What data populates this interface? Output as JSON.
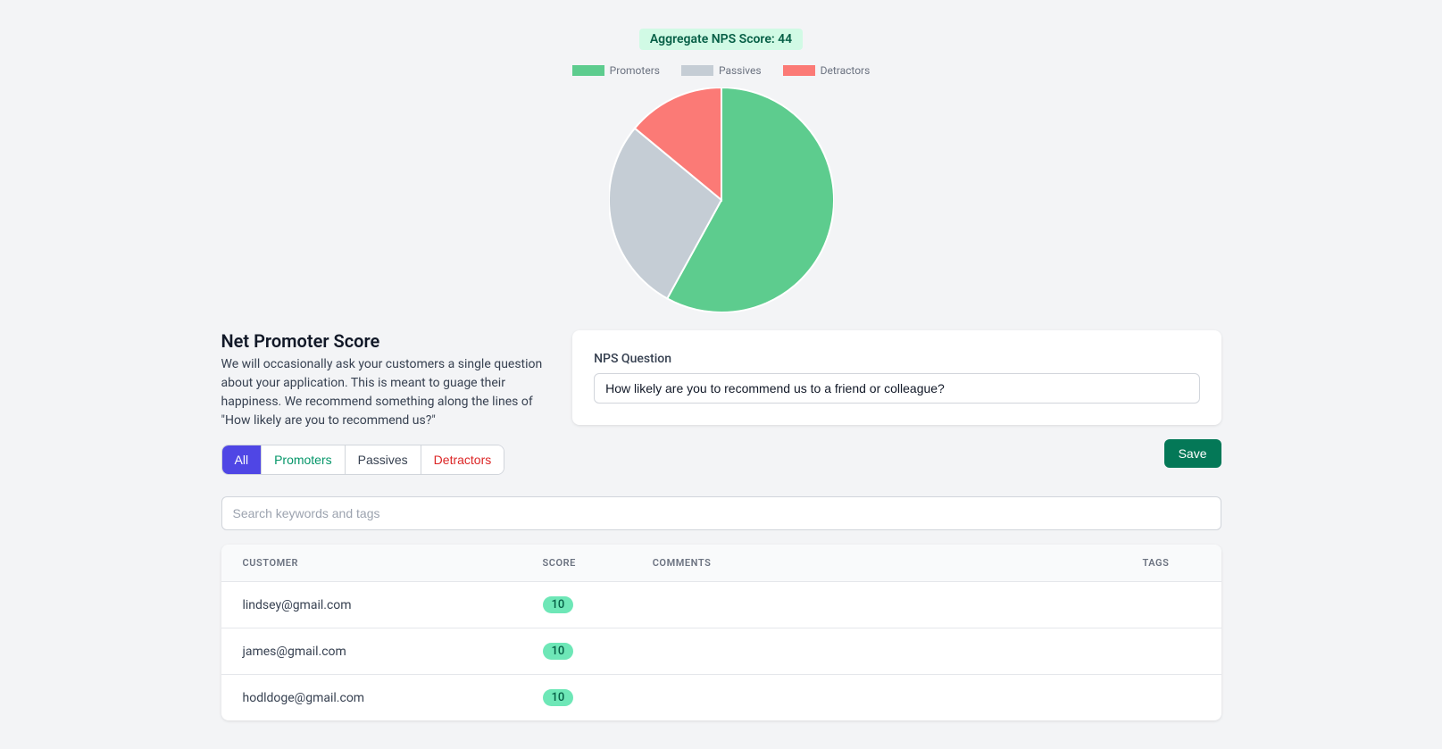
{
  "nps_badge": "Aggregate NPS Score: 44",
  "chart": {
    "type": "pie",
    "radius": 126,
    "background_color": "#f3f4f6",
    "legend": [
      {
        "label": "Promoters",
        "color": "#5dcc8e"
      },
      {
        "label": "Passives",
        "color": "#c5cdd5"
      },
      {
        "label": "Detractors",
        "color": "#fb7a76"
      }
    ],
    "legend_font_size": 12,
    "legend_text_color": "#6b7280",
    "slices": [
      {
        "label": "Promoters",
        "percent": 58,
        "color": "#5dcc8e"
      },
      {
        "label": "Passives",
        "percent": 28,
        "color": "#c5cdd5"
      },
      {
        "label": "Detractors",
        "percent": 14,
        "color": "#fb7a76"
      }
    ]
  },
  "info": {
    "title": "Net Promoter Score",
    "description": "We will occasionally ask your customers a single question about your application. This is meant to guage their happiness. We recommend something along the lines of \"How likely are you to recommend us?\""
  },
  "filters": {
    "active": "All",
    "tabs": [
      {
        "label": "All",
        "class": "active"
      },
      {
        "label": "Promoters",
        "class": "promoters"
      },
      {
        "label": "Passives",
        "class": "passives"
      },
      {
        "label": "Detractors",
        "class": "detractors"
      }
    ]
  },
  "question_form": {
    "label": "NPS Question",
    "value": "How likely are you to recommend us to a friend or colleague?",
    "save_label": "Save"
  },
  "search": {
    "placeholder": "Search keywords and tags"
  },
  "table": {
    "columns": [
      "CUSTOMER",
      "SCORE",
      "COMMENTS",
      "TAGS"
    ],
    "rows": [
      {
        "customer": "lindsey@gmail.com",
        "score": "10",
        "comments": "",
        "tags": ""
      },
      {
        "customer": "james@gmail.com",
        "score": "10",
        "comments": "",
        "tags": ""
      },
      {
        "customer": "hodldoge@gmail.com",
        "score": "10",
        "comments": "",
        "tags": ""
      }
    ],
    "score_badge_bg": "#6ee7b7",
    "score_badge_fg": "#065f46"
  }
}
